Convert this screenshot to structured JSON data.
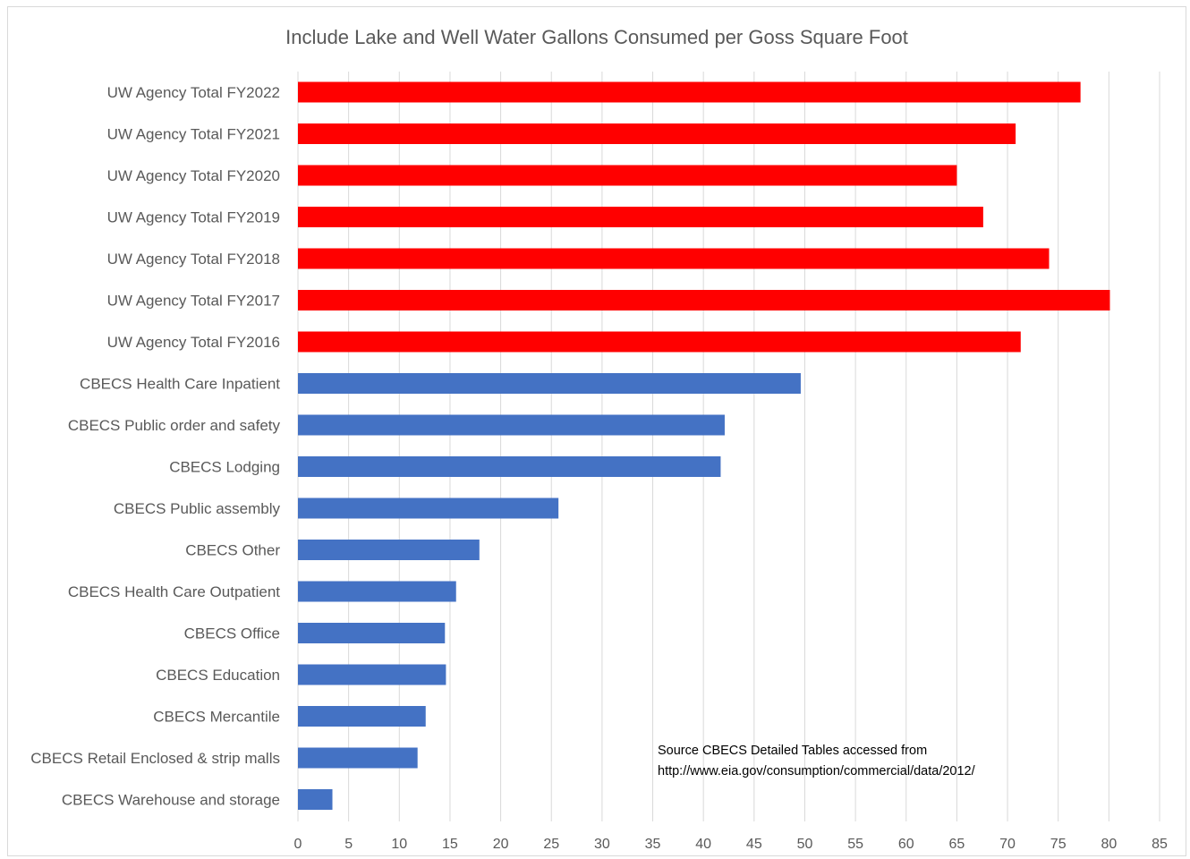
{
  "chart_data": {
    "type": "bar",
    "orientation": "horizontal",
    "title": "Include Lake and Well Water Gallons Consumed per Goss Square Foot",
    "xlabel": "",
    "ylabel": "",
    "xlim": [
      0,
      85
    ],
    "x_ticks": [
      "0",
      "5",
      "10",
      "15",
      "20",
      "25",
      "30",
      "35",
      "40",
      "45",
      "50",
      "55",
      "60",
      "65",
      "70",
      "75",
      "80",
      "85"
    ],
    "grid": "vertical major gridlines",
    "legend": "none",
    "categories": [
      "UW Agency Total FY2022",
      "UW Agency Total FY2021",
      "UW Agency Total FY2020",
      "UW Agency Total FY2019",
      "UW Agency Total FY2018",
      "UW Agency Total FY2017",
      "UW Agency Total FY2016",
      "CBECS Health Care Inpatient",
      "CBECS Public order and safety",
      "CBECS Lodging",
      "CBECS Public assembly",
      "CBECS Other",
      "CBECS Health Care Outpatient",
      "CBECS Office",
      "CBECS Education",
      "CBECS Mercantile",
      "CBECS Retail Enclosed & strip malls",
      "CBECS Warehouse and storage"
    ],
    "values": [
      77.2,
      70.8,
      65.0,
      67.6,
      74.1,
      80.1,
      71.3,
      49.6,
      42.1,
      41.7,
      25.7,
      17.9,
      15.6,
      14.5,
      14.6,
      12.6,
      11.8,
      3.4
    ],
    "bar_colors": [
      "#ff0000",
      "#ff0000",
      "#ff0000",
      "#ff0000",
      "#ff0000",
      "#ff0000",
      "#ff0000",
      "#4472c4",
      "#4472c4",
      "#4472c4",
      "#4472c4",
      "#4472c4",
      "#4472c4",
      "#4472c4",
      "#4472c4",
      "#4472c4",
      "#4472c4",
      "#4472c4"
    ],
    "annotation": {
      "line1": "Source CBECS Detailed Tables accessed from",
      "line2": "http://www.eia.gov/consumption/commercial/data/2012/"
    }
  }
}
